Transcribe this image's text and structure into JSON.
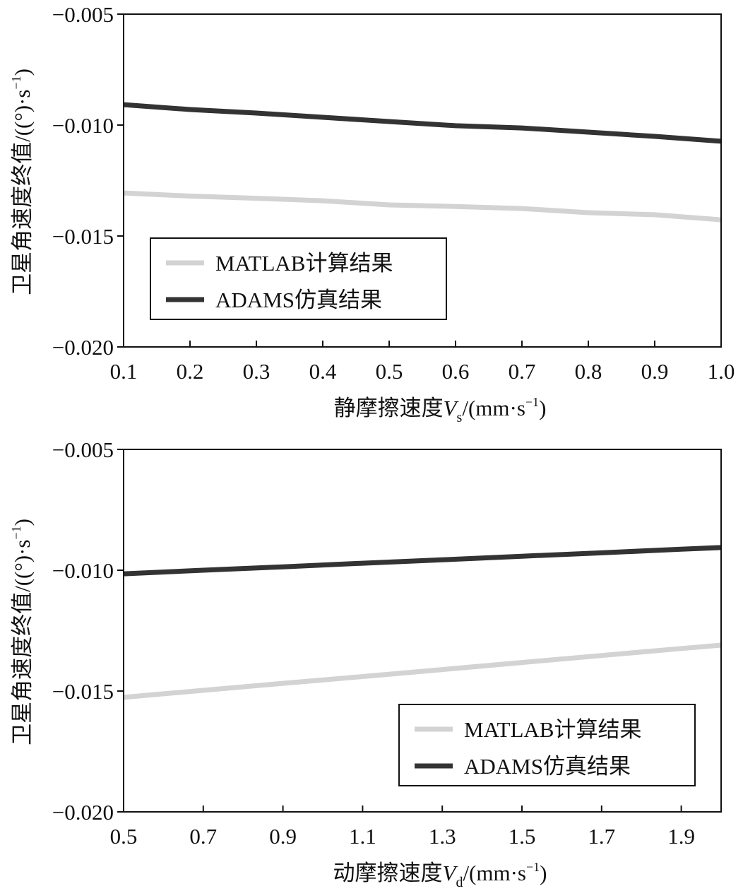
{
  "colors": {
    "matlab": "#d3d3d3",
    "adams": "#333333",
    "axis": "#111111"
  },
  "chart_data": [
    {
      "type": "line",
      "title": "",
      "xlabel_main": "静摩擦速度",
      "xlabel_var": "V",
      "xlabel_sub": "s",
      "xlabel_unit": "/(mm·s",
      "xlabel_unit_sup": "−1",
      "xlabel_unit_end": ")",
      "ylabel": "卫星角速度终值/((°)·s",
      "ylabel_sup": "−1",
      "ylabel_end": ")",
      "xlim": [
        0.1,
        1.0
      ],
      "ylim": [
        -0.02,
        -0.005
      ],
      "xticks": [
        0.1,
        0.2,
        0.3,
        0.4,
        0.5,
        0.6,
        0.7,
        0.8,
        0.9,
        1.0
      ],
      "xtick_labels": [
        "0.1",
        "0.2",
        "0.3",
        "0.4",
        "0.5",
        "0.6",
        "0.7",
        "0.8",
        "0.9",
        "1.0"
      ],
      "yticks": [
        -0.005,
        -0.01,
        -0.015,
        -0.02
      ],
      "ytick_labels": [
        "−0.005",
        "−0.010",
        "−0.015",
        "−0.020"
      ],
      "grid": false,
      "legend_position": "lower left",
      "x": [
        0.1,
        0.2,
        0.3,
        0.4,
        0.5,
        0.6,
        0.7,
        0.8,
        0.9,
        1.0
      ],
      "series": [
        {
          "name": "MATLAB计算结果",
          "color_key": "matlab",
          "values": [
            -0.01306,
            -0.0132,
            -0.0133,
            -0.01341,
            -0.0136,
            -0.01367,
            -0.01376,
            -0.01395,
            -0.01404,
            -0.01427
          ]
        },
        {
          "name": "ADAMS仿真结果",
          "color_key": "adams",
          "values": [
            -0.00908,
            -0.0093,
            -0.00946,
            -0.00965,
            -0.00984,
            -0.01003,
            -0.01013,
            -0.01032,
            -0.01051,
            -0.01073
          ]
        }
      ]
    },
    {
      "type": "line",
      "title": "",
      "xlabel_main": "动摩擦速度",
      "xlabel_var": "V",
      "xlabel_sub": "d",
      "xlabel_unit": "/(mm·s",
      "xlabel_unit_sup": "−1",
      "xlabel_unit_end": ")",
      "ylabel": "卫星角速度终值/((°)·s",
      "ylabel_sup": "−1",
      "ylabel_end": ")",
      "xlim": [
        0.5,
        2.0
      ],
      "ylim": [
        -0.02,
        -0.005
      ],
      "xticks": [
        0.5,
        0.7,
        0.9,
        1.1,
        1.3,
        1.5,
        1.7,
        1.9
      ],
      "xtick_labels": [
        "0.5",
        "0.7",
        "0.9",
        "1.1",
        "1.3",
        "1.5",
        "1.7",
        "1.9"
      ],
      "yticks": [
        -0.005,
        -0.01,
        -0.015,
        -0.02
      ],
      "ytick_labels": [
        "−0.005",
        "−0.010",
        "−0.015",
        "−0.020"
      ],
      "grid": false,
      "legend_position": "lower right",
      "x": [
        0.5,
        0.7,
        0.9,
        1.1,
        1.3,
        1.5,
        1.7,
        1.9,
        2.0
      ],
      "series": [
        {
          "name": "MATLAB计算结果",
          "color_key": "matlab",
          "values": [
            -0.01526,
            -0.01497,
            -0.01468,
            -0.0144,
            -0.01411,
            -0.01382,
            -0.01353,
            -0.01324,
            -0.0131
          ]
        },
        {
          "name": "ADAMS仿真结果",
          "color_key": "adams",
          "values": [
            -0.01015,
            -0.01,
            -0.00986,
            -0.00971,
            -0.00957,
            -0.00942,
            -0.00928,
            -0.00913,
            -0.00906
          ]
        }
      ]
    }
  ]
}
